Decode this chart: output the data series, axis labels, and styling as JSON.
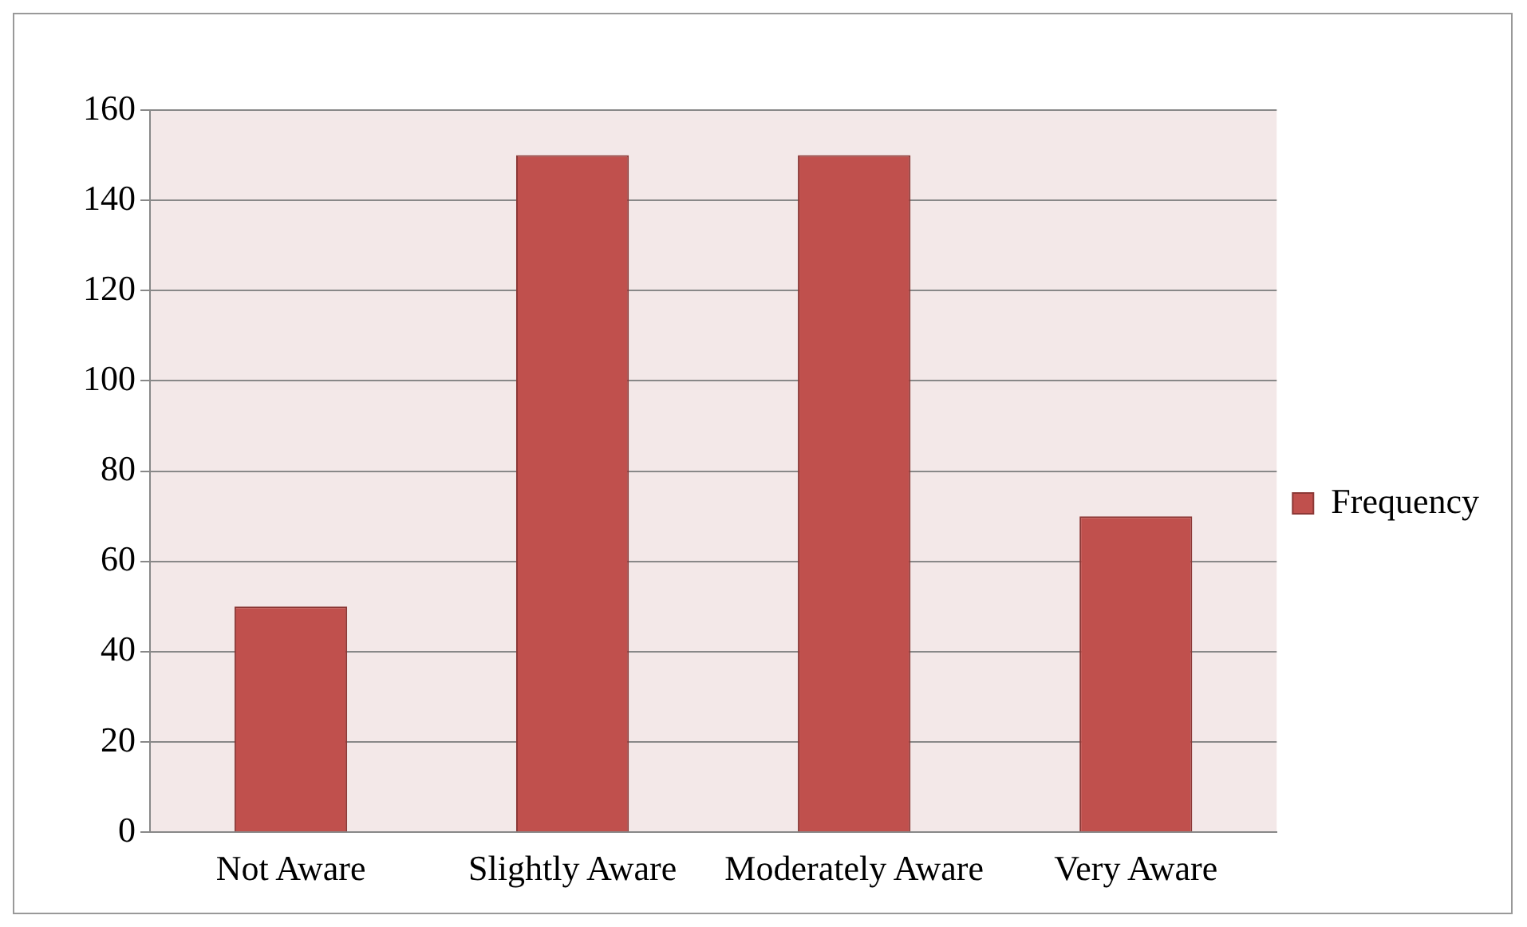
{
  "chart_data": {
    "type": "bar",
    "categories": [
      "Not Aware",
      "Slightly Aware",
      "Moderately Aware",
      "Very Aware"
    ],
    "series": [
      {
        "name": "Frequency",
        "color": "#c0504d",
        "values": [
          50,
          150,
          150,
          70
        ]
      }
    ],
    "ylim": [
      0,
      160
    ],
    "yticks": [
      0,
      20,
      40,
      60,
      80,
      100,
      120,
      140,
      160
    ],
    "grid": "y",
    "legend": "right"
  }
}
